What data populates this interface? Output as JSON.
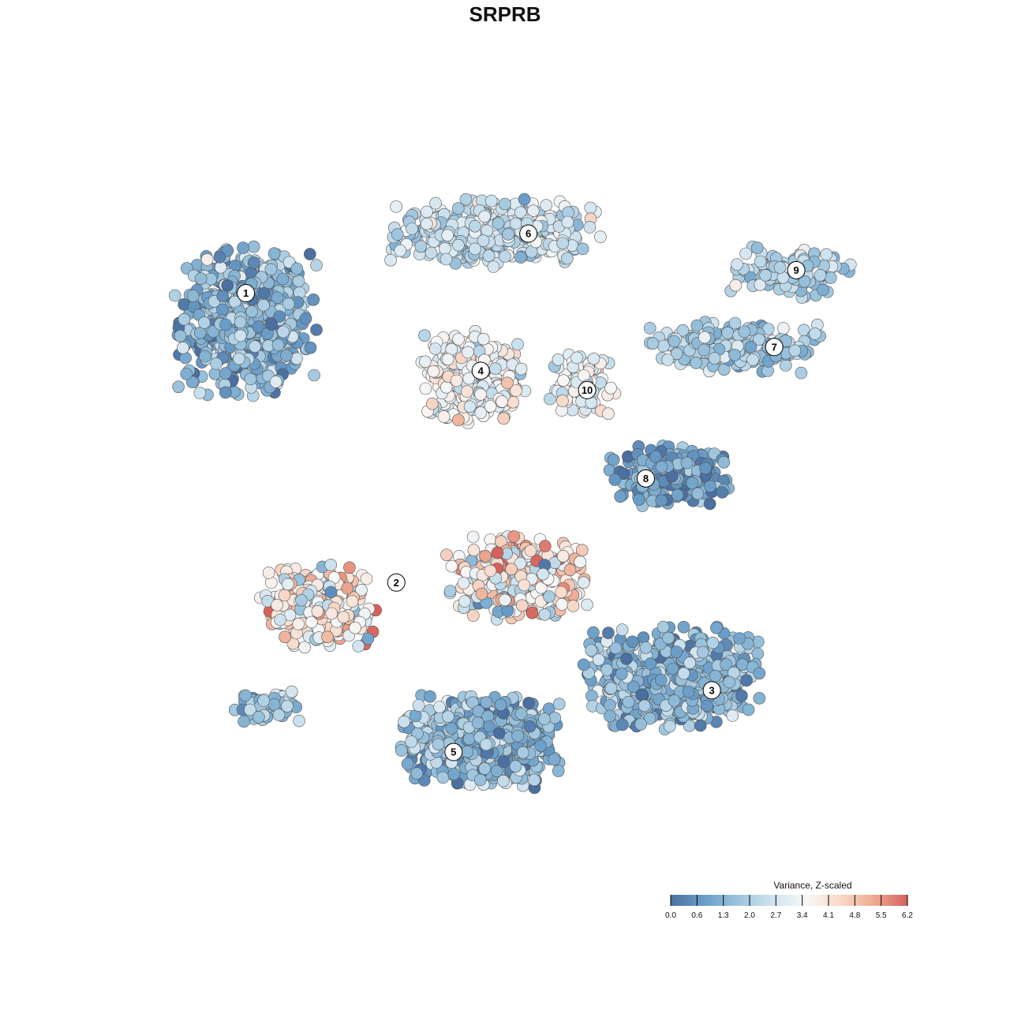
{
  "chart_data": {
    "type": "scatter",
    "title": "SRPRB",
    "xlabel": "",
    "ylabel": "",
    "grid": false,
    "legend_placement": "bottom-right",
    "colorbar": {
      "title": "Variance, Z-scaled",
      "range": [
        0.0,
        6.2
      ],
      "ticks": [
        "0.0",
        "0.6",
        "1.3",
        "2.0",
        "2.7",
        "3.4",
        "4.1",
        "4.8",
        "5.5",
        "6.2"
      ],
      "colors": [
        "#4a6fa0",
        "#6a9ec8",
        "#9cc4dd",
        "#cfe3ef",
        "#f7f7f7",
        "#f8d9c8",
        "#eeab92",
        "#d6605c"
      ]
    },
    "x_range": [
      0,
      100
    ],
    "y_range": [
      0,
      100
    ],
    "clusters": [
      {
        "label": "1",
        "x": 12.0,
        "y": 79.5
      },
      {
        "label": "2",
        "x": 32.5,
        "y": 39.2
      },
      {
        "label": "3",
        "x": 75.5,
        "y": 24.2
      },
      {
        "label": "4",
        "x": 44.0,
        "y": 68.7
      },
      {
        "label": "5",
        "x": 40.3,
        "y": 15.6
      },
      {
        "label": "6",
        "x": 50.5,
        "y": 87.8
      },
      {
        "label": "7",
        "x": 84.0,
        "y": 72.0
      },
      {
        "label": "8",
        "x": 66.5,
        "y": 53.7
      },
      {
        "label": "9",
        "x": 87.0,
        "y": 82.7
      },
      {
        "label": "10",
        "x": 58.5,
        "y": 66.0
      }
    ],
    "point_groups": [
      {
        "cluster": "1",
        "cx": 12.0,
        "cy": 76.0,
        "sx": 8.0,
        "sy": 9.0,
        "n": 650,
        "mean": 1.4,
        "sd": 0.7
      },
      {
        "cluster": "6",
        "cx": 46.0,
        "cy": 88.0,
        "sx": 12.0,
        "sy": 4.0,
        "n": 420,
        "mean": 2.6,
        "sd": 0.6
      },
      {
        "cluster": "4",
        "cx": 43.0,
        "cy": 68.0,
        "sx": 6.0,
        "sy": 5.5,
        "n": 300,
        "mean": 3.4,
        "sd": 0.6
      },
      {
        "cluster": "10",
        "cx": 58.0,
        "cy": 67.0,
        "sx": 4.0,
        "sy": 4.0,
        "n": 100,
        "mean": 3.2,
        "sd": 0.6
      },
      {
        "cluster": "9",
        "cx": 86.0,
        "cy": 82.5,
        "sx": 7.0,
        "sy": 3.0,
        "n": 130,
        "mean": 2.0,
        "sd": 0.5
      },
      {
        "cluster": "7",
        "cx": 79.0,
        "cy": 72.0,
        "sx": 10.0,
        "sy": 3.0,
        "n": 240,
        "mean": 2.0,
        "sd": 0.6
      },
      {
        "cluster": "8",
        "cx": 70.0,
        "cy": 54.0,
        "sx": 7.0,
        "sy": 3.5,
        "n": 220,
        "mean": 0.9,
        "sd": 0.6
      },
      {
        "cluster": "2",
        "cx": 22.0,
        "cy": 36.0,
        "sx": 7.0,
        "sy": 5.0,
        "n": 260,
        "mean": 3.8,
        "sd": 1.0
      },
      {
        "cluster": "2",
        "cx": 49.0,
        "cy": 40.0,
        "sx": 8.0,
        "sy": 5.0,
        "n": 320,
        "mean": 3.6,
        "sd": 1.2
      },
      {
        "cluster": "3",
        "cx": 70.0,
        "cy": 26.0,
        "sx": 10.0,
        "sy": 6.0,
        "n": 650,
        "mean": 1.5,
        "sd": 0.7
      },
      {
        "cluster": "5",
        "cx": 44.0,
        "cy": 17.0,
        "sx": 9.0,
        "sy": 5.5,
        "n": 600,
        "mean": 1.5,
        "sd": 0.8
      },
      {
        "cluster": "2",
        "cx": 15.0,
        "cy": 22.0,
        "sx": 4.0,
        "sy": 2.0,
        "n": 60,
        "mean": 1.8,
        "sd": 0.6
      }
    ]
  }
}
